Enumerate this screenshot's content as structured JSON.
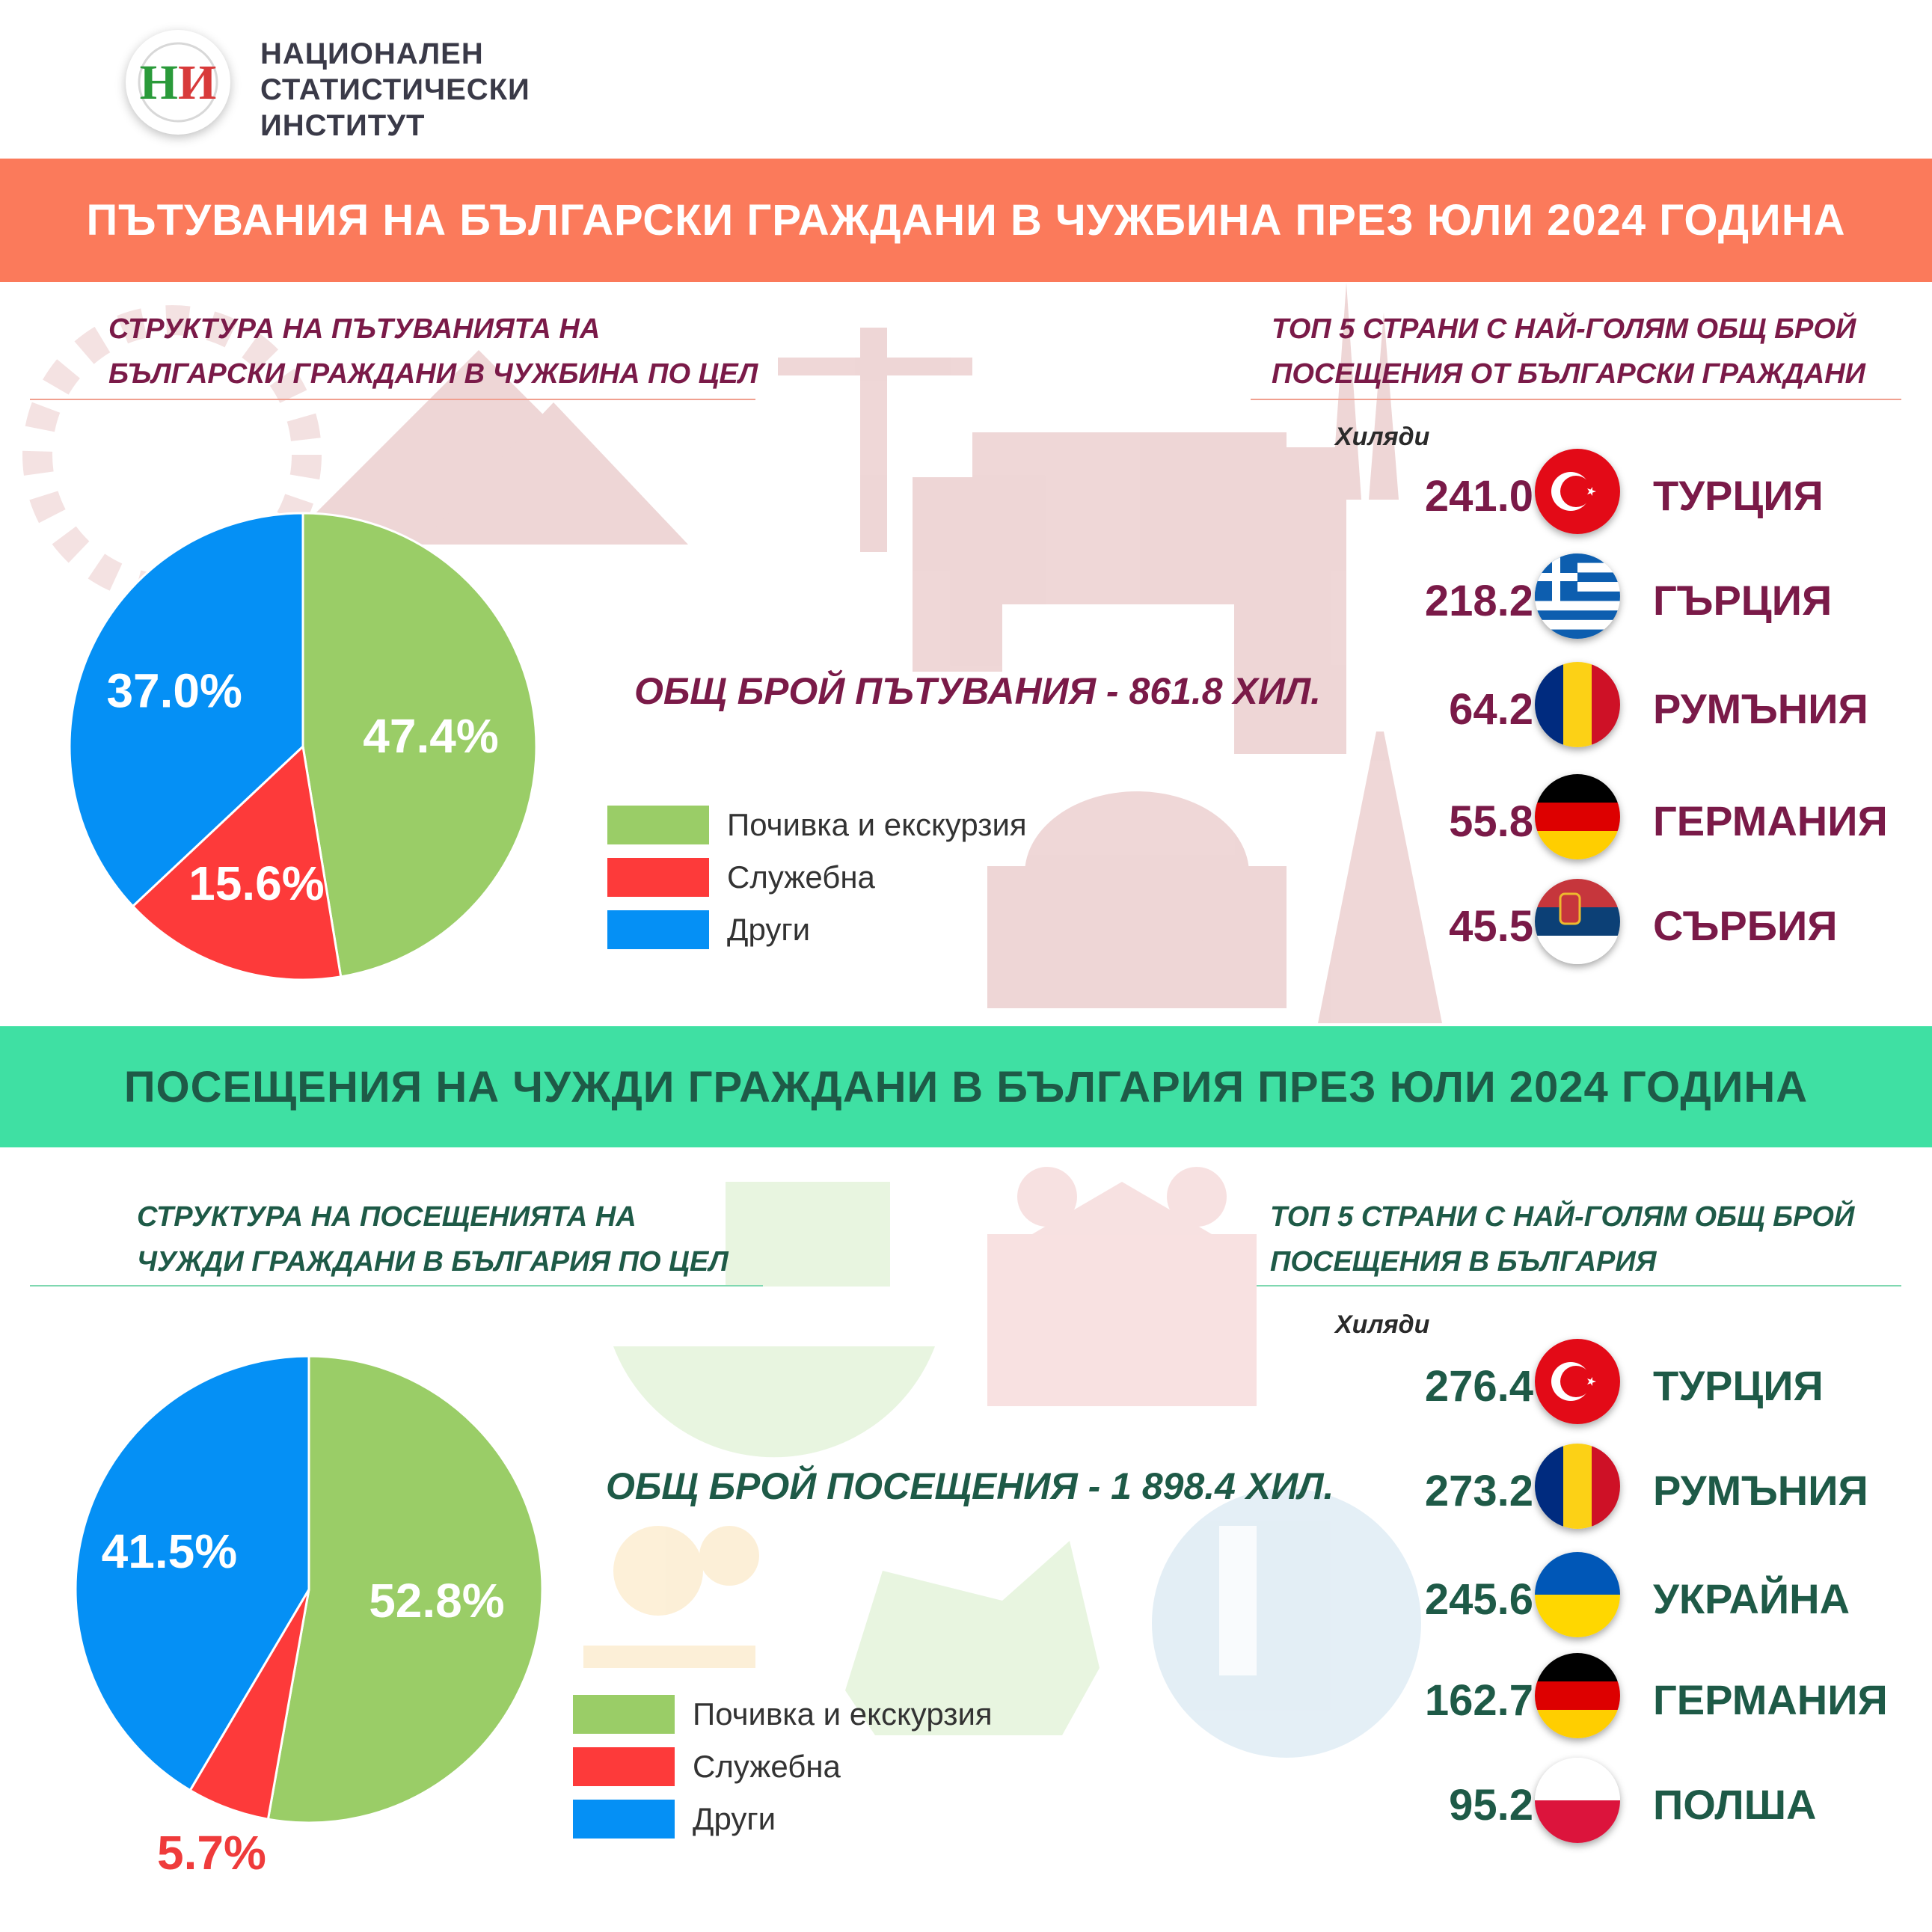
{
  "header": {
    "org_name_lines": [
      "НАЦИОНАЛЕН",
      "СТАТИСТИЧЕСКИ",
      "ИНСТИТУТ"
    ],
    "logo_text": "НИ"
  },
  "colors": {
    "banner_top": "#fb7a5b",
    "banner_bottom": "#3fe0a3",
    "leisure": "#9acd67",
    "business": "#fd3a3a",
    "other": "#0590f5",
    "maroon": "#7a1a48",
    "dark_green": "#1e5a47"
  },
  "outbound": {
    "banner": "ПЪТУВАНИЯ НА БЪЛГАРСКИ ГРАЖДАНИ В ЧУЖБИНА ПРЕЗ ЮЛИ 2024 ГОДИНА",
    "structure_title": [
      "СТРУКТУРА НА ПЪТУВАНИЯТА НА",
      "БЪЛГАРСКИ ГРАЖДАНИ В ЧУЖБИНА ПО ЦЕЛ"
    ],
    "total": "ОБЩ БРОЙ ПЪТУВАНИЯ - 861.8 ХИЛ.",
    "legend": [
      "Почивка и екскурзия",
      "Служебна",
      "Други"
    ],
    "top_title": [
      "ТОП 5 СТРАНИ С НАЙ-ГОЛЯМ ОБЩ БРОЙ",
      "ПОСЕЩЕНИЯ ОТ БЪЛГАРСКИ ГРАЖДАНИ"
    ],
    "unit": "Хиляди",
    "top5": [
      {
        "value": "241.0",
        "country": "ТУРЦИЯ",
        "flag": "turkey-flag-icon"
      },
      {
        "value": "218.2",
        "country": "ГЪРЦИЯ",
        "flag": "greece-flag-icon"
      },
      {
        "value": "64.2",
        "country": "РУМЪНИЯ",
        "flag": "romania-flag-icon"
      },
      {
        "value": "55.8",
        "country": "ГЕРМАНИЯ",
        "flag": "germany-flag-icon"
      },
      {
        "value": "45.5",
        "country": "СЪРБИЯ",
        "flag": "serbia-flag-icon"
      }
    ]
  },
  "inbound": {
    "banner": "ПОСЕЩЕНИЯ НА ЧУЖДИ ГРАЖДАНИ В БЪЛГАРИЯ ПРЕЗ ЮЛИ 2024 ГОДИНА",
    "structure_title": [
      "СТРУКТУРА НА ПОСЕЩЕНИЯТА НА",
      "ЧУЖДИ ГРАЖДАНИ В БЪЛГАРИЯ ПО ЦЕЛ"
    ],
    "total": "ОБЩ БРОЙ ПОСЕЩЕНИЯ - 1 898.4 ХИЛ.",
    "legend": [
      "Почивка и екскурзия",
      "Служебна",
      "Други"
    ],
    "top_title": [
      "ТОП 5 СТРАНИ С НАЙ-ГОЛЯМ ОБЩ БРОЙ",
      "ПОСЕЩЕНИЯ В БЪЛГАРИЯ"
    ],
    "unit": "Хиляди",
    "top5": [
      {
        "value": "276.4",
        "country": "ТУРЦИЯ",
        "flag": "turkey-flag-icon"
      },
      {
        "value": "273.2",
        "country": "РУМЪНИЯ",
        "flag": "romania-flag-icon"
      },
      {
        "value": "245.6",
        "country": "УКРАЙНА",
        "flag": "ukraine-flag-icon"
      },
      {
        "value": "162.7",
        "country": "ГЕРМАНИЯ",
        "flag": "germany-flag-icon"
      },
      {
        "value": "95.2",
        "country": "ПОЛША",
        "flag": "poland-flag-icon"
      }
    ]
  },
  "chart_data": [
    {
      "type": "pie",
      "categories": [
        "Почивка и екскурзия",
        "Служебна",
        "Други"
      ],
      "values": [
        47.4,
        15.6,
        37.0
      ],
      "labels": [
        "47.4%",
        "15.6%",
        "37.0%"
      ],
      "colors": [
        "#9acd67",
        "#fd3a3a",
        "#0590f5"
      ]
    },
    {
      "type": "bar",
      "categories": [
        "ТУРЦИЯ",
        "ГЪРЦИЯ",
        "РУМЪНИЯ",
        "ГЕРМАНИЯ",
        "СЪРБИЯ"
      ],
      "values": [
        241.0,
        218.2,
        64.2,
        55.8,
        45.5
      ],
      "ylabel": "Хиляди"
    },
    {
      "type": "pie",
      "categories": [
        "Почивка и екскурзия",
        "Служебна",
        "Други"
      ],
      "values": [
        52.8,
        5.7,
        41.5
      ],
      "labels": [
        "52.8%",
        "5.7%",
        "41.5%"
      ],
      "colors": [
        "#9acd67",
        "#fd3a3a",
        "#0590f5"
      ]
    },
    {
      "type": "bar",
      "categories": [
        "ТУРЦИЯ",
        "РУМЪНИЯ",
        "УКРАЙНА",
        "ГЕРМАНИЯ",
        "ПОЛША"
      ],
      "values": [
        276.4,
        273.2,
        245.6,
        162.7,
        95.2
      ],
      "ylabel": "Хиляди"
    }
  ]
}
